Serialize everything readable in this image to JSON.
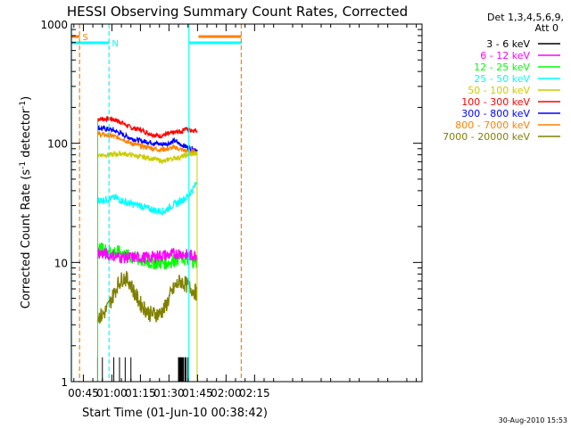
{
  "chart_data": {
    "type": "line",
    "title": "HESSI Observing Summary Count Rates, Corrected",
    "xlabel": "Start Time (01-Jun-10 00:38:42)",
    "ylabel_main": "Corrected Count Rate (s",
    "ylabel_sup1": "-1",
    "ylabel_mid": " detector",
    "ylabel_sup2": "-1",
    "ylabel_end": ")",
    "x_unit": "minutes after 00:00 UT",
    "xlim": [
      38.7,
      223
    ],
    "ylim": [
      1,
      1000
    ],
    "y_scale": "log",
    "x_tick_values": [
      45,
      60,
      75,
      90,
      105,
      120,
      135
    ],
    "x_tick_labels": [
      "00:45",
      "01:00",
      "01:15",
      "01:30",
      "01:45",
      "02:00",
      "02:15"
    ],
    "y_tick_values": [
      1,
      10,
      100,
      1000
    ],
    "y_tick_labels": [
      "1",
      "10",
      "100",
      "1000"
    ],
    "legend": {
      "position": "right",
      "header1": "Det 1,3,4,5,6,9,",
      "header2": "Att 0",
      "entries": [
        {
          "label": "3 - 6 keV",
          "color": "#000000"
        },
        {
          "label": "6 - 12 keV",
          "color": "#ff00ff"
        },
        {
          "label": "12 - 25 keV",
          "color": "#00ff00"
        },
        {
          "label": "25 - 50 keV",
          "color": "#00ffff"
        },
        {
          "label": "50 - 100 keV",
          "color": "#cccc00"
        },
        {
          "label": "100 - 300 keV",
          "color": "#ff0000"
        },
        {
          "label": "300 - 800 keV",
          "color": "#0000ff"
        },
        {
          "label": "800 - 7000 keV",
          "color": "#ff8000"
        },
        {
          "label": "7000 - 20000 keV",
          "color": "#808000"
        }
      ]
    },
    "flags": {
      "saa_label": "S",
      "night_label": "N",
      "saa_color": "#ff8000",
      "night_color": "#00ffff",
      "saa_bars": [
        [
          38.7,
          43
        ],
        [
          105.5,
          128
        ]
      ],
      "night_bars": [
        [
          38.7,
          58.5
        ],
        [
          100.5,
          128
        ]
      ],
      "night_boundaries": [
        38.7,
        58.5,
        100.5
      ],
      "saa_dashed": [
        43,
        128
      ],
      "data_start": 52.5,
      "data_end": 104.8
    },
    "series": [
      {
        "name": "100 - 300 keV",
        "color": "#ff0000",
        "x": [
          52.5,
          60,
          65,
          70,
          75,
          80,
          85,
          90,
          95,
          97,
          98,
          100,
          104.8
        ],
        "y": [
          160,
          160,
          150,
          135,
          130,
          120,
          115,
          120,
          125,
          125,
          135,
          130,
          128
        ]
      },
      {
        "name": "300 - 800 keV",
        "color": "#0000ff",
        "x": [
          52.5,
          60,
          65,
          70,
          75,
          80,
          85,
          90,
          93,
          95,
          100,
          104.8
        ],
        "y": [
          135,
          130,
          120,
          110,
          105,
          102,
          98,
          100,
          105,
          100,
          92,
          88
        ]
      },
      {
        "name": "800 - 7000 keV",
        "color": "#ff8000",
        "x": [
          52.5,
          60,
          65,
          70,
          75,
          80,
          85,
          90,
          93,
          95,
          100,
          104.8
        ],
        "y": [
          120,
          115,
          110,
          100,
          95,
          92,
          88,
          90,
          93,
          90,
          85,
          83
        ]
      },
      {
        "name": "50 - 100 keV",
        "color": "#cccc00",
        "x": [
          52.5,
          60,
          65,
          70,
          75,
          80,
          85,
          88,
          90,
          95,
          100,
          104.8
        ],
        "y": [
          80,
          80,
          82,
          80,
          77,
          75,
          72,
          70,
          74,
          76,
          80,
          82
        ]
      },
      {
        "name": "25 - 50 keV",
        "color": "#00ffff",
        "x": [
          52.5,
          58,
          62,
          65,
          70,
          75,
          80,
          85,
          88,
          90,
          95,
          100,
          103,
          104.8
        ],
        "y": [
          33,
          34,
          35,
          33,
          31,
          30,
          28,
          27,
          27,
          29,
          32,
          36,
          42,
          48
        ]
      },
      {
        "name": "12 - 25 keV",
        "color": "#00ff00",
        "x": [
          52.5,
          60,
          65,
          70,
          75,
          80,
          85,
          90,
          95,
          100,
          104.8
        ],
        "y": [
          13,
          12.5,
          12,
          11,
          10.5,
          10,
          10,
          10,
          11,
          10.5,
          10
        ]
      },
      {
        "name": "6 - 12 keV",
        "color": "#ff00ff",
        "x": [
          52.5,
          60,
          65,
          70,
          75,
          80,
          85,
          90,
          95,
          100,
          104.8
        ],
        "y": [
          12,
          11.5,
          11,
          11,
          11,
          11,
          11.5,
          11.5,
          12,
          11.5,
          11.5
        ]
      },
      {
        "name": "7000 - 20000 keV",
        "color": "#808000",
        "x": [
          52.5,
          55,
          58,
          60,
          63,
          66,
          69,
          72,
          75,
          80,
          85,
          88,
          90,
          93,
          96,
          99,
          102,
          104.8
        ],
        "y": [
          3.5,
          3.6,
          4.2,
          5,
          6.5,
          7.5,
          7,
          5.5,
          4.5,
          3.7,
          3.7,
          4.2,
          5,
          6.2,
          7,
          6.5,
          6,
          5.5
        ]
      },
      {
        "name": "3 - 6 keV",
        "color": "#000000",
        "x": [
          52.5,
          55,
          58,
          61,
          64,
          67,
          70,
          73,
          76,
          79,
          82,
          85,
          88,
          91,
          94,
          95,
          97,
          99,
          100,
          101
        ],
        "y": [
          1.6,
          1.6,
          1,
          1.6,
          1.6,
          1.6,
          1.6,
          1,
          1,
          1,
          1,
          1,
          1,
          1,
          1,
          1.6,
          1.6,
          1.6,
          1.6,
          1
        ]
      }
    ]
  },
  "timestamp": "30-Aug-2010 15:53"
}
